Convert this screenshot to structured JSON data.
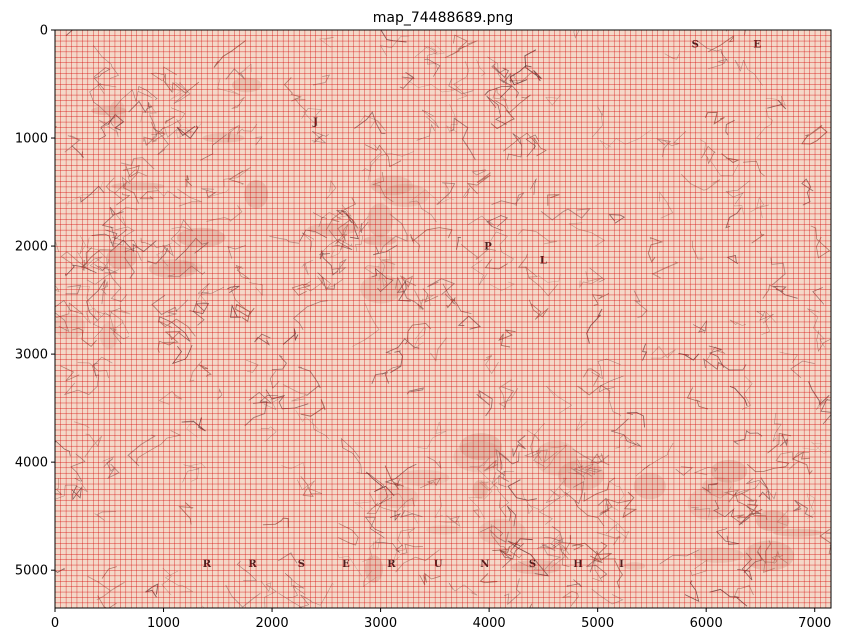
{
  "figure": {
    "title": "map_74488689.png"
  },
  "chart_data": {
    "type": "heatmap",
    "image_width": 7150,
    "image_height": 5350,
    "xlim": [
      0,
      7150
    ],
    "ylim": [
      5350,
      0
    ],
    "x_ticks": [
      0,
      1000,
      2000,
      3000,
      4000,
      5000,
      6000,
      7000
    ],
    "y_ticks": [
      0,
      1000,
      2000,
      3000,
      4000,
      5000
    ],
    "grid": true,
    "grid_spacing": 50,
    "grid_color": "#d40000",
    "background_color": "#f4d8c8",
    "map_letters": [
      {
        "text": "R",
        "x": 1400,
        "y": 4970
      },
      {
        "text": "R",
        "x": 1820,
        "y": 4970
      },
      {
        "text": "S",
        "x": 2270,
        "y": 4970
      },
      {
        "text": "E",
        "x": 2680,
        "y": 4970
      },
      {
        "text": "R",
        "x": 3100,
        "y": 4970
      },
      {
        "text": "U",
        "x": 3530,
        "y": 4970
      },
      {
        "text": "N",
        "x": 3960,
        "y": 4970
      },
      {
        "text": "S",
        "x": 4400,
        "y": 4970
      },
      {
        "text": "H",
        "x": 4820,
        "y": 4970
      },
      {
        "text": "I",
        "x": 5220,
        "y": 4970
      },
      {
        "text": "J",
        "x": 2400,
        "y": 880
      },
      {
        "text": "P",
        "x": 3990,
        "y": 2030
      },
      {
        "text": "L",
        "x": 4500,
        "y": 2160
      },
      {
        "text": "E",
        "x": 6470,
        "y": 160
      },
      {
        "text": "S",
        "x": 5900,
        "y": 160
      }
    ]
  }
}
